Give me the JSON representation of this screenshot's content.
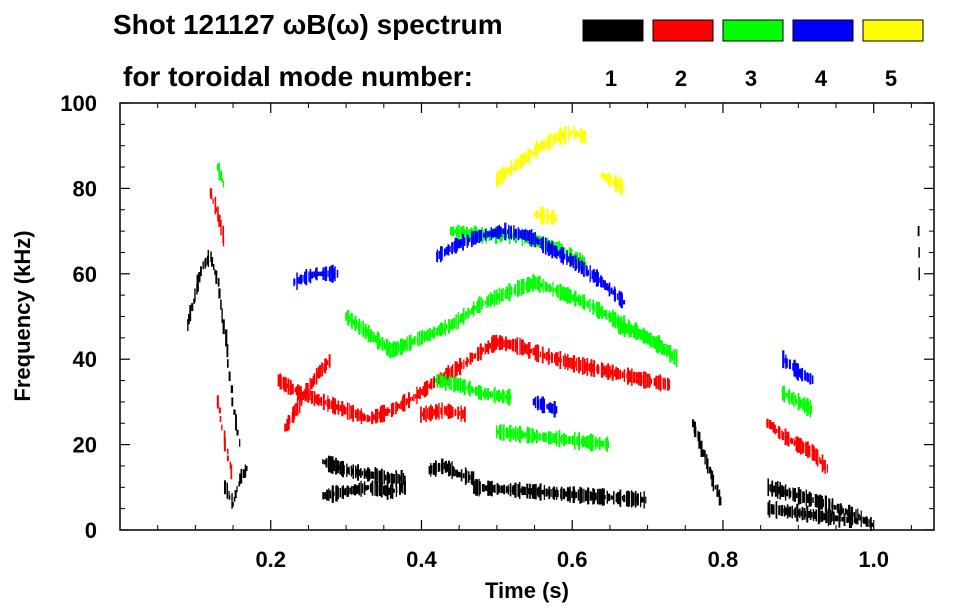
{
  "chart_data": {
    "type": "scatter",
    "title_line1": "Shot 121127 ωB(ω) spectrum",
    "title_line2": "for toroidal mode number:",
    "xlabel": "Time (s)",
    "ylabel": "Frequency (kHz)",
    "xlim": [
      0.0,
      1.08
    ],
    "ylim": [
      0,
      100
    ],
    "x_ticks": [
      0.2,
      0.4,
      0.6,
      0.8,
      1.0
    ],
    "x_tick_labels": [
      "0.2",
      "0.4",
      "0.6",
      "0.8",
      "1.0"
    ],
    "y_ticks": [
      0,
      20,
      40,
      60,
      80,
      100
    ],
    "y_tick_labels": [
      "0",
      "20",
      "40",
      "60",
      "80",
      "100"
    ],
    "legend": [
      {
        "label": "1",
        "color": "#000000"
      },
      {
        "label": "2",
        "color": "#ff0000"
      },
      {
        "label": "3",
        "color": "#00ff00"
      },
      {
        "label": "4",
        "color": "#0000ff"
      },
      {
        "label": "5",
        "color": "#ffff00"
      }
    ],
    "series": [
      {
        "name": "n=1",
        "color": "#000000",
        "curves": [
          [
            [
              0.09,
              48
            ],
            [
              0.1,
              55
            ],
            [
              0.11,
              62
            ],
            [
              0.12,
              64
            ],
            [
              0.13,
              58
            ],
            [
              0.14,
              45
            ],
            [
              0.15,
              30
            ],
            [
              0.16,
              18
            ]
          ],
          [
            [
              0.14,
              10
            ],
            [
              0.15,
              6
            ],
            [
              0.16,
              12
            ],
            [
              0.17,
              15
            ]
          ],
          [
            [
              0.27,
              16
            ],
            [
              0.3,
              14
            ],
            [
              0.33,
              13
            ],
            [
              0.36,
              12
            ],
            [
              0.38,
              12
            ]
          ],
          [
            [
              0.27,
              8
            ],
            [
              0.3,
              9
            ],
            [
              0.33,
              10
            ],
            [
              0.36,
              9
            ],
            [
              0.38,
              10
            ]
          ],
          [
            [
              0.41,
              14
            ],
            [
              0.43,
              15
            ],
            [
              0.45,
              13
            ],
            [
              0.47,
              12
            ]
          ],
          [
            [
              0.47,
              10
            ],
            [
              0.55,
              9
            ],
            [
              0.62,
              8
            ],
            [
              0.7,
              7
            ]
          ],
          [
            [
              0.76,
              25
            ],
            [
              0.77,
              20
            ],
            [
              0.78,
              15
            ],
            [
              0.79,
              10
            ],
            [
              0.8,
              6
            ]
          ],
          [
            [
              0.86,
              10
            ],
            [
              0.9,
              8
            ],
            [
              0.94,
              6
            ],
            [
              0.98,
              3
            ],
            [
              1.0,
              1
            ]
          ],
          [
            [
              0.86,
              5
            ],
            [
              0.9,
              4
            ],
            [
              0.94,
              3
            ],
            [
              0.98,
              2
            ]
          ],
          [
            [
              1.06,
              70
            ],
            [
              1.062,
              55
            ]
          ]
        ]
      },
      {
        "name": "n=2",
        "color": "#ff0000",
        "curves": [
          [
            [
              0.12,
              79
            ],
            [
              0.13,
              74
            ],
            [
              0.14,
              66
            ]
          ],
          [
            [
              0.21,
              35
            ],
            [
              0.24,
              32
            ],
            [
              0.27,
              30
            ],
            [
              0.3,
              28
            ],
            [
              0.33,
              26
            ],
            [
              0.36,
              28
            ],
            [
              0.39,
              31
            ],
            [
              0.42,
              35
            ],
            [
              0.45,
              38
            ],
            [
              0.48,
              42
            ],
            [
              0.5,
              44
            ],
            [
              0.53,
              43
            ],
            [
              0.56,
              41
            ],
            [
              0.6,
              39
            ],
            [
              0.65,
              37
            ],
            [
              0.7,
              35
            ],
            [
              0.73,
              34
            ]
          ],
          [
            [
              0.22,
              24
            ],
            [
              0.24,
              30
            ],
            [
              0.26,
              36
            ],
            [
              0.28,
              40
            ]
          ],
          [
            [
              0.4,
              27
            ],
            [
              0.43,
              28
            ],
            [
              0.46,
              27
            ]
          ],
          [
            [
              0.86,
              25
            ],
            [
              0.88,
              22
            ],
            [
              0.9,
              20
            ],
            [
              0.92,
              18
            ],
            [
              0.94,
              14
            ]
          ],
          [
            [
              0.13,
              30
            ],
            [
              0.14,
              20
            ],
            [
              0.15,
              12
            ]
          ]
        ]
      },
      {
        "name": "n=3",
        "color": "#00ff00",
        "curves": [
          [
            [
              0.13,
              85
            ],
            [
              0.14,
              80
            ]
          ],
          [
            [
              0.3,
              50
            ],
            [
              0.33,
              46
            ],
            [
              0.36,
              42
            ],
            [
              0.4,
              45
            ],
            [
              0.44,
              48
            ],
            [
              0.48,
              53
            ],
            [
              0.52,
              56
            ],
            [
              0.55,
              58
            ],
            [
              0.58,
              56
            ],
            [
              0.62,
              53
            ],
            [
              0.66,
              49
            ],
            [
              0.7,
              45
            ],
            [
              0.73,
              42
            ]
          ],
          [
            [
              0.42,
              35
            ],
            [
              0.45,
              34
            ],
            [
              0.48,
              32
            ],
            [
              0.52,
              31
            ]
          ],
          [
            [
              0.5,
              23
            ],
            [
              0.55,
              22
            ],
            [
              0.6,
              21
            ],
            [
              0.65,
              20
            ]
          ],
          [
            [
              0.44,
              70
            ],
            [
              0.48,
              69
            ],
            [
              0.52,
              69
            ],
            [
              0.55,
              68
            ],
            [
              0.58,
              66
            ],
            [
              0.62,
              62
            ]
          ],
          [
            [
              0.88,
              32
            ],
            [
              0.9,
              30
            ],
            [
              0.92,
              28
            ]
          ],
          [
            [
              0.66,
              48
            ],
            [
              0.7,
              45
            ],
            [
              0.74,
              40
            ]
          ]
        ]
      },
      {
        "name": "n=4",
        "color": "#0000ff",
        "curves": [
          [
            [
              0.23,
              58
            ],
            [
              0.26,
              60
            ],
            [
              0.29,
              60
            ]
          ],
          [
            [
              0.42,
              64
            ],
            [
              0.45,
              67
            ],
            [
              0.48,
              69
            ],
            [
              0.51,
              70
            ],
            [
              0.54,
              69
            ],
            [
              0.57,
              66
            ],
            [
              0.6,
              63
            ],
            [
              0.64,
              58
            ],
            [
              0.67,
              53
            ]
          ],
          [
            [
              0.88,
              40
            ],
            [
              0.9,
              37
            ],
            [
              0.92,
              35
            ]
          ],
          [
            [
              0.55,
              30
            ],
            [
              0.58,
              28
            ]
          ]
        ]
      },
      {
        "name": "n=5",
        "color": "#ffff00",
        "curves": [
          [
            [
              0.5,
              82
            ],
            [
              0.53,
              86
            ],
            [
              0.56,
              90
            ],
            [
              0.58,
              92
            ],
            [
              0.6,
              93
            ],
            [
              0.62,
              92
            ]
          ],
          [
            [
              0.55,
              74
            ],
            [
              0.58,
              73
            ]
          ],
          [
            [
              0.64,
              83
            ],
            [
              0.67,
              80
            ]
          ]
        ]
      }
    ]
  }
}
